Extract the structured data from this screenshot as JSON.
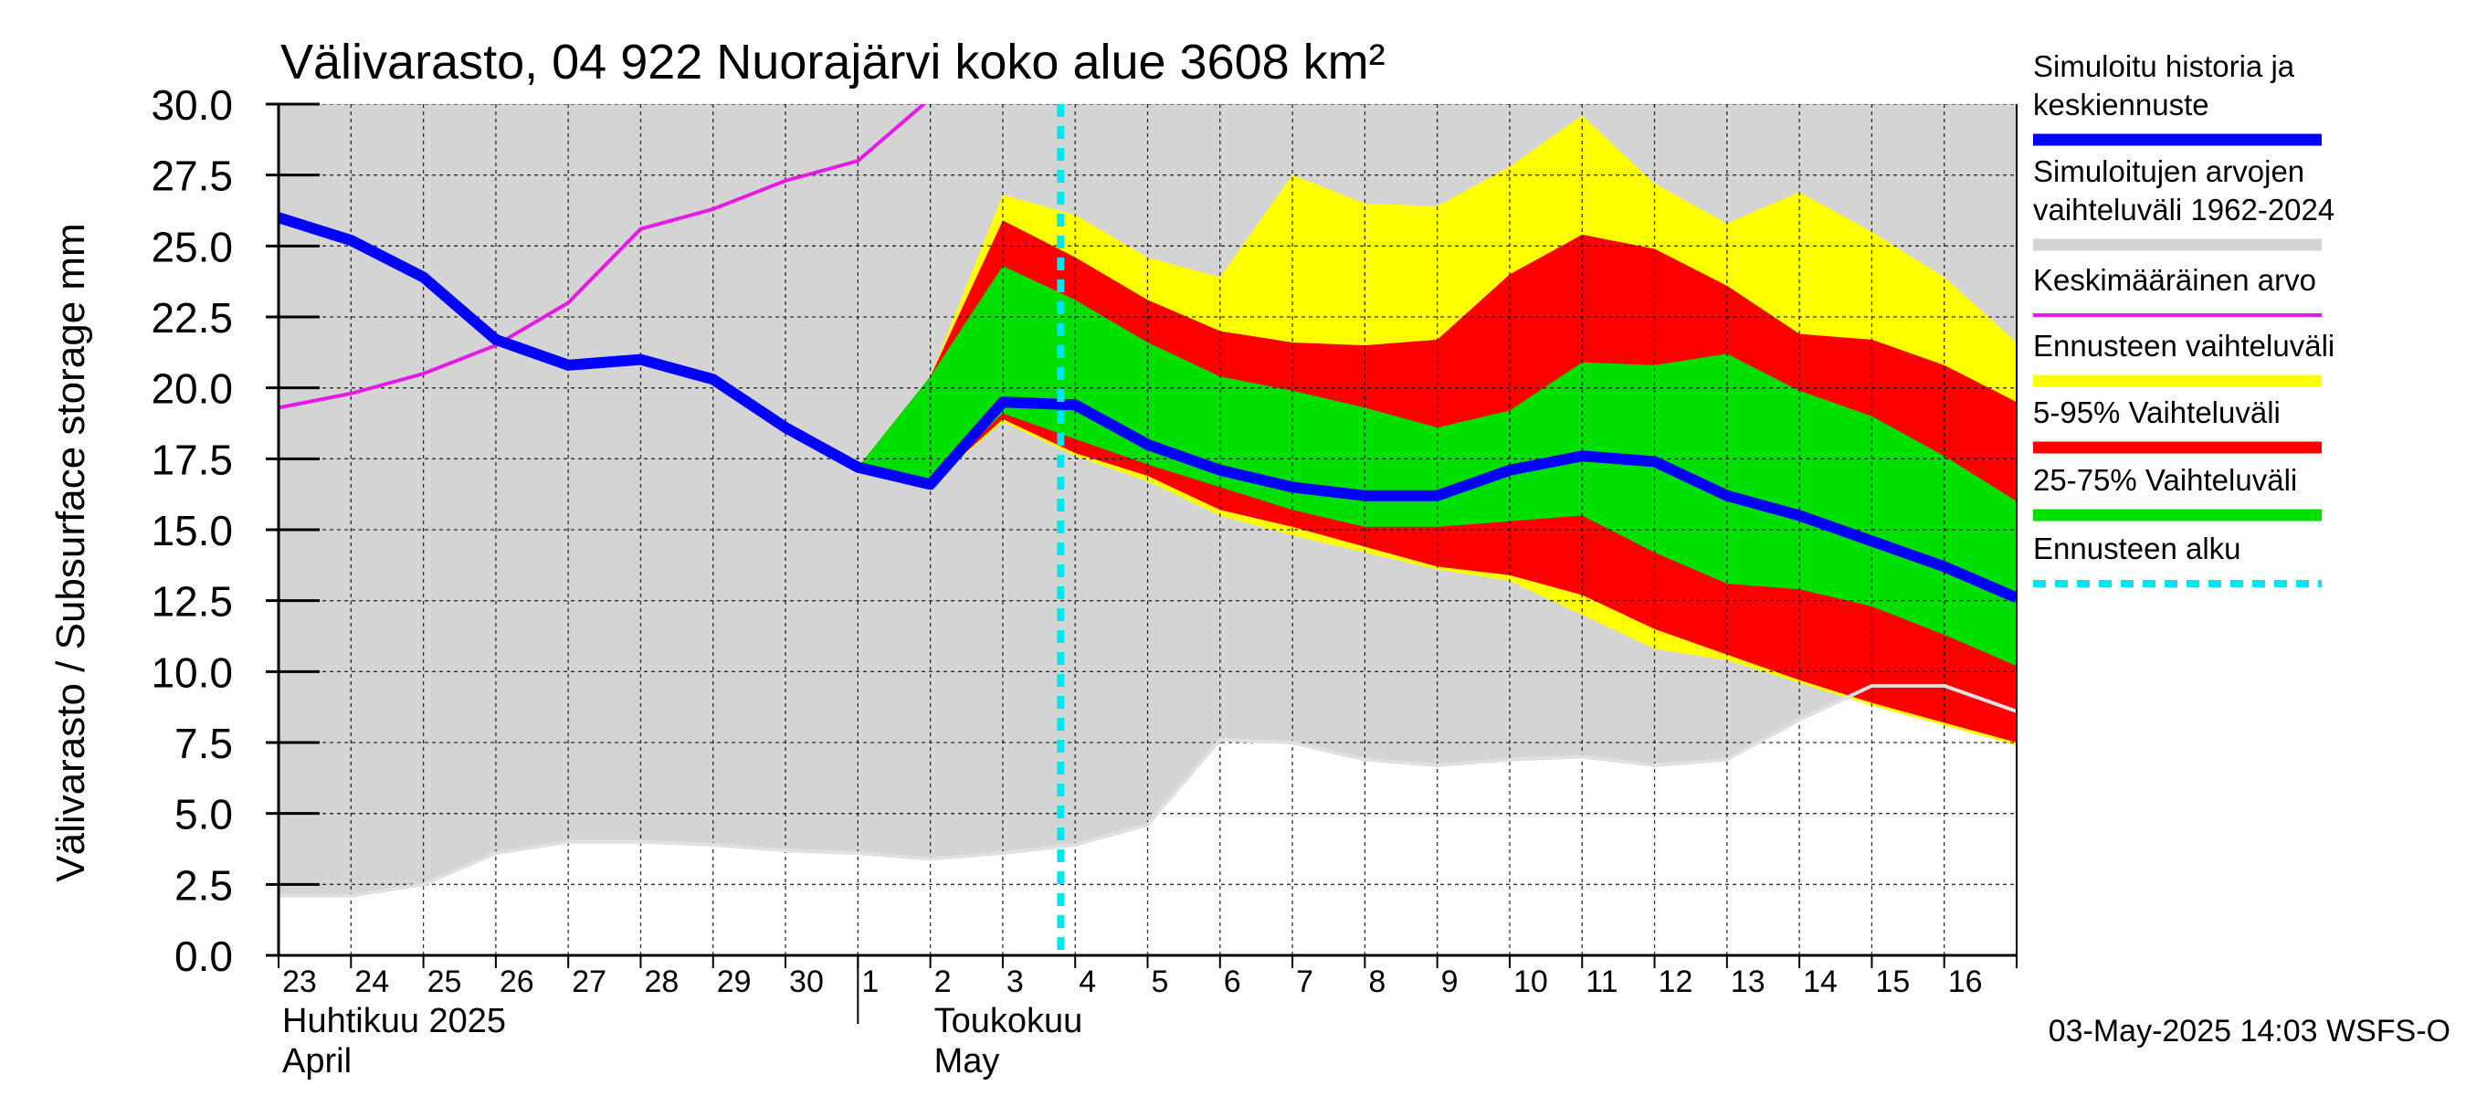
{
  "chart_data": {
    "type": "area",
    "title": "Välivarasto, 04 922 Nuorajärvi koko alue 3608 km²",
    "ylabel": "Välivarasto / Subsurface storage  mm",
    "ylim": [
      0,
      30
    ],
    "yticks": [
      "0.0",
      "2.5",
      "5.0",
      "7.5",
      "10.0",
      "12.5",
      "15.0",
      "17.5",
      "20.0",
      "22.5",
      "25.0",
      "27.5",
      "30.0"
    ],
    "x_day_labels": [
      "23",
      "24",
      "25",
      "26",
      "27",
      "28",
      "29",
      "30",
      "1",
      "2",
      "3",
      "4",
      "5",
      "6",
      "7",
      "8",
      "9",
      "10",
      "11",
      "12",
      "13",
      "14",
      "15",
      "16"
    ],
    "x_month_labels": [
      {
        "fi": "Huhtikuu  2025",
        "en": "April",
        "start": "23"
      },
      {
        "fi": "Toukokuu",
        "en": "May",
        "start": "2"
      }
    ],
    "x_index_range": [
      0,
      24
    ],
    "forecast_start": 10.8,
    "timestamp": "03-May-2025 14:03 WSFS-O",
    "colors": {
      "background": "#d4d4d4",
      "history": "#0000ff",
      "range_sim": "#d4d4d4",
      "mean": "#e619e6",
      "forecast_range": "#ffff00",
      "p5_95": "#ff0000",
      "p25_75": "#00e000",
      "forecast_start": "#00e5ee"
    },
    "legend": [
      {
        "label": "Simuloitu historia ja keskiennuste",
        "color": "#0000ff",
        "style": "thick"
      },
      {
        "label": "Simuloitujen arvojen vaihteluväli 1962-2024",
        "color": "#d4d4d4",
        "style": "thick"
      },
      {
        "label": "Keskimääräinen arvo",
        "color": "#e619e6",
        "style": "thin"
      },
      {
        "label": "Ennusteen vaihteluväli",
        "color": "#ffff00",
        "style": "thick"
      },
      {
        "label": "5-95% Vaihteluväli",
        "color": "#ff0000",
        "style": "thick"
      },
      {
        "label": "25-75% Vaihteluväli",
        "color": "#00e000",
        "style": "thick"
      },
      {
        "label": "Ennusteen alku",
        "color": "#00e5ee",
        "style": "dashed"
      }
    ],
    "series": {
      "sim_min": {
        "x": [
          0,
          1,
          2,
          3,
          4,
          5,
          6,
          7,
          8,
          9,
          10,
          11,
          12,
          13,
          14,
          15,
          16,
          17,
          18,
          19,
          20,
          21,
          22,
          23,
          24
        ],
        "y": [
          2.1,
          2.1,
          2.5,
          3.6,
          4.0,
          4.0,
          3.9,
          3.7,
          3.6,
          3.4,
          3.6,
          3.9,
          4.6,
          7.6,
          7.5,
          6.9,
          6.7,
          6.9,
          7.0,
          6.7,
          6.9,
          8.3,
          9.5,
          9.5,
          8.6
        ]
      },
      "mean": {
        "x": [
          0,
          1,
          2,
          3,
          4,
          5,
          6,
          7,
          8,
          9
        ],
        "y": [
          19.3,
          19.8,
          20.5,
          21.5,
          23.0,
          25.6,
          26.3,
          27.3,
          28.0,
          30.2
        ]
      },
      "history": {
        "x": [
          0,
          1,
          2,
          3,
          4,
          5,
          6,
          7,
          8,
          9,
          10,
          11,
          12,
          13,
          14,
          15,
          16,
          17,
          18,
          19,
          20,
          21,
          22,
          23,
          24
        ],
        "y": [
          26.0,
          25.2,
          23.9,
          21.7,
          20.8,
          21.0,
          20.3,
          18.6,
          17.2,
          16.6,
          19.5,
          19.4,
          18.0,
          17.1,
          16.5,
          16.2,
          16.2,
          17.1,
          17.6,
          17.4,
          16.2,
          15.5,
          14.6,
          13.7,
          12.6
        ]
      },
      "forecast_range": {
        "x": [
          8,
          9,
          10,
          11,
          12,
          13,
          14,
          15,
          16,
          17,
          18,
          19,
          20,
          21,
          22,
          23,
          24
        ],
        "upper": [
          17.2,
          20.4,
          26.8,
          26.1,
          24.6,
          23.9,
          27.5,
          26.5,
          26.4,
          27.8,
          29.6,
          27.2,
          25.8,
          26.9,
          25.5,
          23.9,
          21.6
        ],
        "lower": [
          17.2,
          16.6,
          18.8,
          17.6,
          16.7,
          15.5,
          14.8,
          14.2,
          13.6,
          13.2,
          12.0,
          10.8,
          10.4,
          9.6,
          8.8,
          8.1,
          7.4
        ]
      },
      "p5_95": {
        "x": [
          8,
          9,
          10,
          11,
          12,
          13,
          14,
          15,
          16,
          17,
          18,
          19,
          20,
          21,
          22,
          23,
          24
        ],
        "upper": [
          17.2,
          20.4,
          25.9,
          24.6,
          23.1,
          22.0,
          21.6,
          21.5,
          21.7,
          24.0,
          25.4,
          24.9,
          23.6,
          21.9,
          21.7,
          20.8,
          19.5
        ],
        "lower": [
          17.2,
          16.6,
          18.9,
          17.7,
          16.9,
          15.7,
          15.1,
          14.4,
          13.7,
          13.4,
          12.7,
          11.5,
          10.6,
          9.7,
          8.9,
          8.2,
          7.5
        ]
      },
      "p25_75": {
        "x": [
          8,
          9,
          10,
          11,
          12,
          13,
          14,
          15,
          16,
          17,
          18,
          19,
          20,
          21,
          22,
          23,
          24
        ],
        "upper": [
          17.2,
          20.4,
          24.3,
          23.1,
          21.6,
          20.4,
          19.9,
          19.3,
          18.6,
          19.2,
          20.9,
          20.8,
          21.2,
          19.9,
          19.0,
          17.6,
          16.0
        ],
        "lower": [
          17.2,
          16.6,
          19.1,
          18.2,
          17.3,
          16.5,
          15.7,
          15.1,
          15.1,
          15.3,
          15.5,
          14.2,
          13.1,
          12.9,
          12.3,
          11.3,
          10.2
        ]
      }
    }
  }
}
